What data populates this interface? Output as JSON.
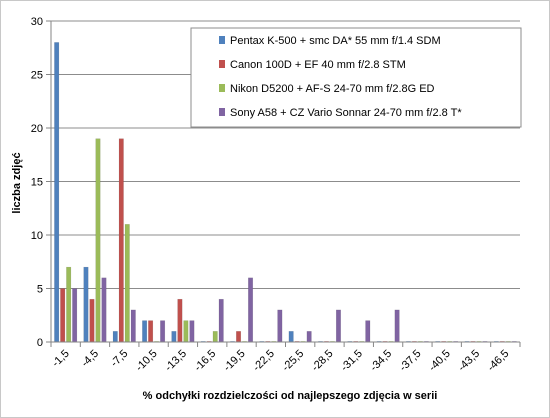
{
  "chart_data": {
    "type": "bar",
    "xlabel": "% odchyłki  rozdzielczości  od najlepszego  zdjęcia  w serii",
    "ylabel": "liczba zdjęć",
    "ylim": [
      0,
      30
    ],
    "yticks": [
      0,
      5,
      10,
      15,
      20,
      25,
      30
    ],
    "grid": true,
    "legend_position": "top-right",
    "categories": [
      "-1,5",
      "-4,5",
      "-7,5",
      "-10,5",
      "-13,5",
      "-16,5",
      "-19,5",
      "-22,5",
      "-25,5",
      "-28,5",
      "-31,5",
      "-34,5",
      "-37,5",
      "-40,5",
      "-43,5",
      "-46,5"
    ],
    "series": [
      {
        "name": "Pentax K-500 + smc DA* 55 mm f/1.4 SDM",
        "color": "#4f81bd",
        "values": [
          28,
          7,
          1,
          2,
          1,
          0,
          0,
          0,
          1,
          0,
          0,
          0,
          0,
          0,
          0,
          0
        ]
      },
      {
        "name": "Canon 100D + EF 40 mm f/2.8 STM",
        "color": "#c0504d",
        "values": [
          5,
          4,
          19,
          2,
          4,
          0,
          1,
          0,
          0,
          0,
          0,
          0,
          0,
          0,
          0,
          0
        ]
      },
      {
        "name": "Nikon D5200 + AF-S 24-70 mm f/2.8G ED",
        "color": "#9bbb59",
        "values": [
          7,
          19,
          11,
          0,
          2,
          1,
          0,
          0,
          0,
          0,
          0,
          0,
          0,
          0,
          0,
          0
        ]
      },
      {
        "name": "Sony A58 + CZ Vario Sonnar 24-70 mm f/2.8 T*",
        "color": "#8064a2",
        "values": [
          5,
          6,
          3,
          2,
          2,
          4,
          6,
          3,
          1,
          3,
          2,
          3,
          0,
          0,
          0,
          0
        ]
      }
    ]
  }
}
